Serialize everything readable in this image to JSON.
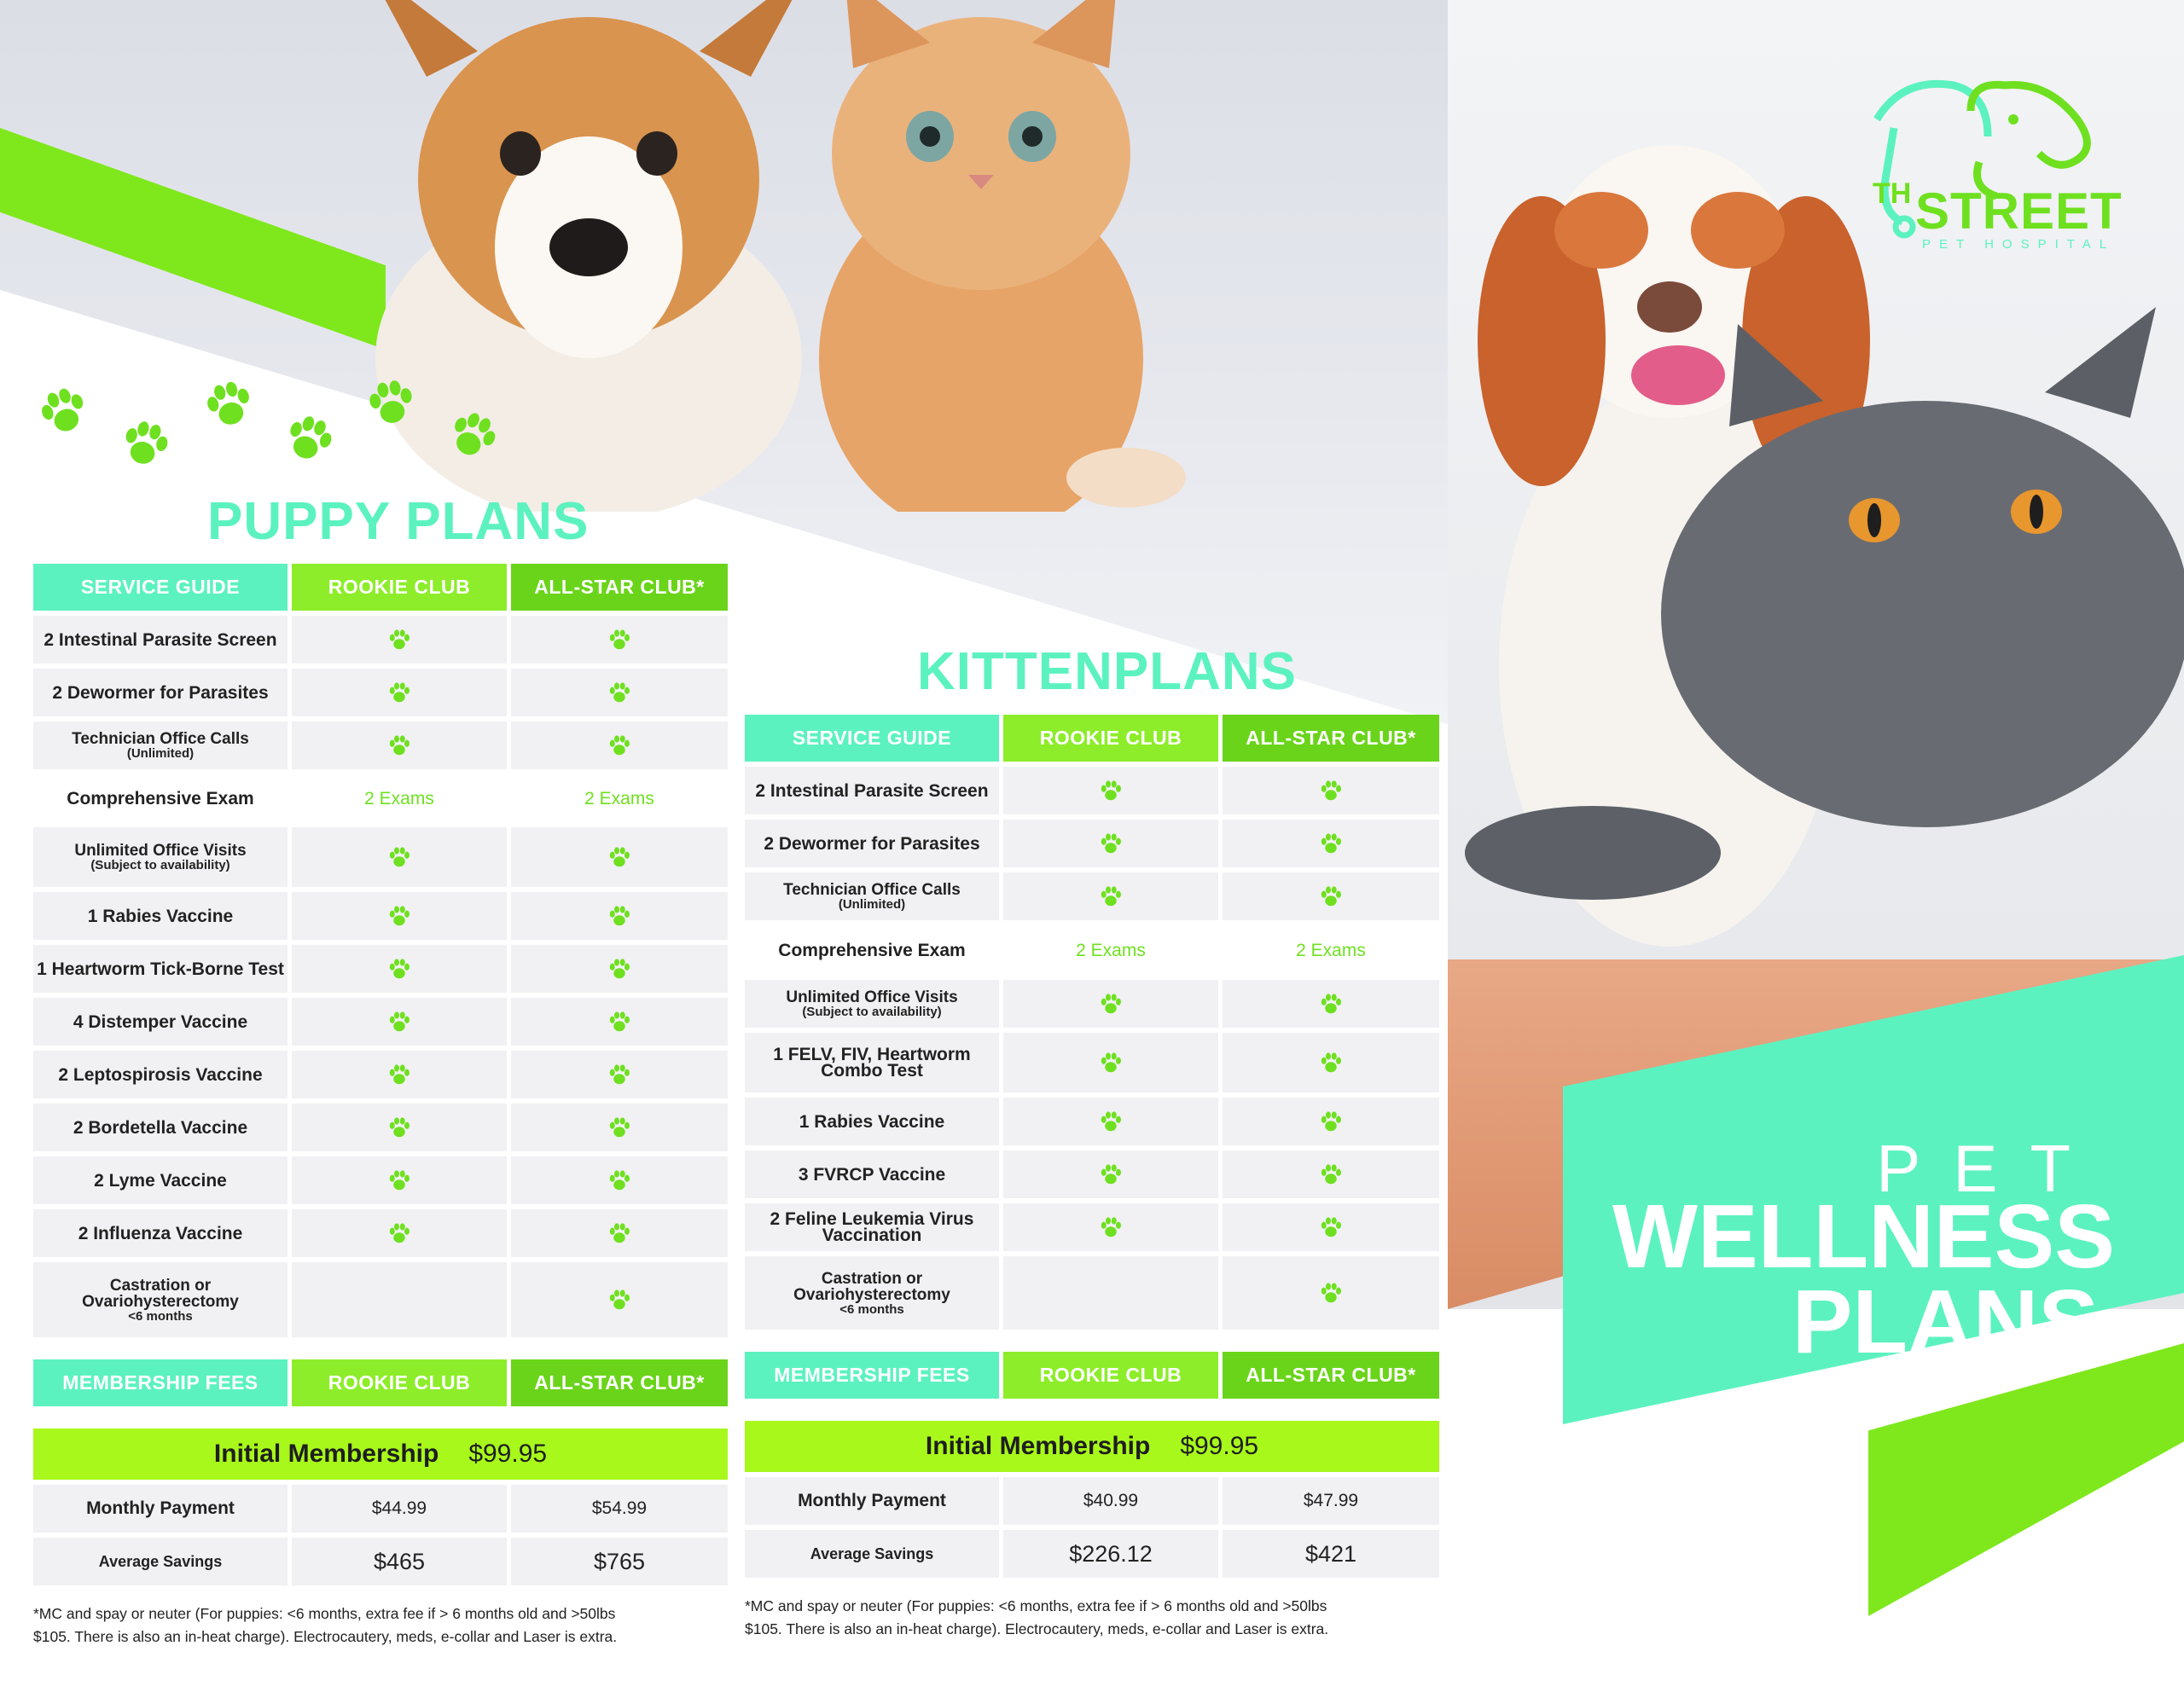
{
  "brand": {
    "logo_th": "TH",
    "logo_street": "STREET",
    "logo_sub": "PET HOSPITAL",
    "accent_teal": "#5cf2c0",
    "accent_green": "#7fe81c"
  },
  "banner": {
    "line1": "PET",
    "line2": "WELLNESS",
    "line3": "PLANS"
  },
  "puppy": {
    "title": "PUPPY PLANS",
    "headers": [
      "SERVICE GUIDE",
      "ROOKIE CLUB",
      "ALL-STAR CLUB*"
    ],
    "rows": [
      {
        "label": "2 Intestinal Parasite Screen",
        "sub": "",
        "rookie": "paw",
        "allstar": "paw"
      },
      {
        "label": "2 Dewormer for Parasites",
        "sub": "",
        "rookie": "paw",
        "allstar": "paw"
      },
      {
        "label": "Technician Office Calls",
        "sub": "(Unlimited)",
        "rookie": "paw",
        "allstar": "paw"
      },
      {
        "label": "Comprehensive Exam",
        "sub": "",
        "rookie": "2 Exams",
        "allstar": "2 Exams"
      },
      {
        "label": "Unlimited Office Visits",
        "sub": "(Subject to availability)",
        "rookie": "paw",
        "allstar": "paw"
      },
      {
        "label": "1 Rabies Vaccine",
        "sub": "",
        "rookie": "paw",
        "allstar": "paw"
      },
      {
        "label": "1 Heartworm Tick-Borne Test",
        "sub": "",
        "rookie": "paw",
        "allstar": "paw"
      },
      {
        "label": "4 Distemper Vaccine",
        "sub": "",
        "rookie": "paw",
        "allstar": "paw"
      },
      {
        "label": "2 Leptospirosis Vaccine",
        "sub": "",
        "rookie": "paw",
        "allstar": "paw"
      },
      {
        "label": "2 Bordetella Vaccine",
        "sub": "",
        "rookie": "paw",
        "allstar": "paw"
      },
      {
        "label": "2 Lyme Vaccine",
        "sub": "",
        "rookie": "paw",
        "allstar": "paw"
      },
      {
        "label": "2 Influenza Vaccine",
        "sub": "",
        "rookie": "paw",
        "allstar": "paw"
      },
      {
        "label": "Castration or Ovariohysterectomy",
        "sub": "<6 months",
        "rookie": "",
        "allstar": "paw"
      }
    ],
    "fees_headers": [
      "MEMBERSHIP FEES",
      "ROOKIE CLUB",
      "ALL-STAR CLUB*"
    ],
    "initial_label": "Initial Membership",
    "initial_value": "$99.95",
    "monthly_label": "Monthly Payment",
    "monthly_rookie": "$44.99",
    "monthly_allstar": "$54.99",
    "savings_label": "Average Savings",
    "savings_rookie": "$465",
    "savings_allstar": "$765",
    "footnote_line1": "*MC and spay or neuter (For puppies: <6 months, extra fee if > 6 months old and >50lbs",
    "footnote_line2": "$105. There is also an in-heat charge). Electrocautery, meds, e-collar and Laser is extra."
  },
  "kitten": {
    "title": "KITTENPLANS",
    "headers": [
      "SERVICE GUIDE",
      "ROOKIE CLUB",
      "ALL-STAR CLUB*"
    ],
    "rows": [
      {
        "label": "2 Intestinal Parasite Screen",
        "sub": "",
        "rookie": "paw",
        "allstar": "paw"
      },
      {
        "label": "2 Dewormer for Parasites",
        "sub": "",
        "rookie": "paw",
        "allstar": "paw"
      },
      {
        "label": "Technician Office Calls",
        "sub": "(Unlimited)",
        "rookie": "paw",
        "allstar": "paw"
      },
      {
        "label": "Comprehensive Exam",
        "sub": "",
        "rookie": "2 Exams",
        "allstar": "2 Exams"
      },
      {
        "label": "Unlimited Office Visits",
        "sub": "(Subject to availability)",
        "rookie": "paw",
        "allstar": "paw"
      },
      {
        "label": "1 FELV, FIV, Heartworm Combo Test",
        "sub": "",
        "rookie": "paw",
        "allstar": "paw"
      },
      {
        "label": "1 Rabies Vaccine",
        "sub": "",
        "rookie": "paw",
        "allstar": "paw"
      },
      {
        "label": "3 FVRCP Vaccine",
        "sub": "",
        "rookie": "paw",
        "allstar": "paw"
      },
      {
        "label": "2 Feline Leukemia Virus Vaccination",
        "sub": "",
        "rookie": "paw",
        "allstar": "paw"
      },
      {
        "label": "Castration or Ovariohysterectomy",
        "sub": "<6 months",
        "rookie": "",
        "allstar": "paw"
      }
    ],
    "fees_headers": [
      "MEMBERSHIP FEES",
      "ROOKIE CLUB",
      "ALL-STAR CLUB*"
    ],
    "initial_label": "Initial Membership",
    "initial_value": "$99.95",
    "monthly_label": "Monthly Payment",
    "monthly_rookie": "$40.99",
    "monthly_allstar": "$47.99",
    "savings_label": "Average Savings",
    "savings_rookie": "$226.12",
    "savings_allstar": "$421",
    "footnote_line1": "*MC and spay or neuter (For puppies: <6 months, extra fee if > 6 months old and >50lbs",
    "footnote_line2": "$105. There is also an in-heat charge). Electrocautery, meds, e-collar and Laser is extra."
  }
}
